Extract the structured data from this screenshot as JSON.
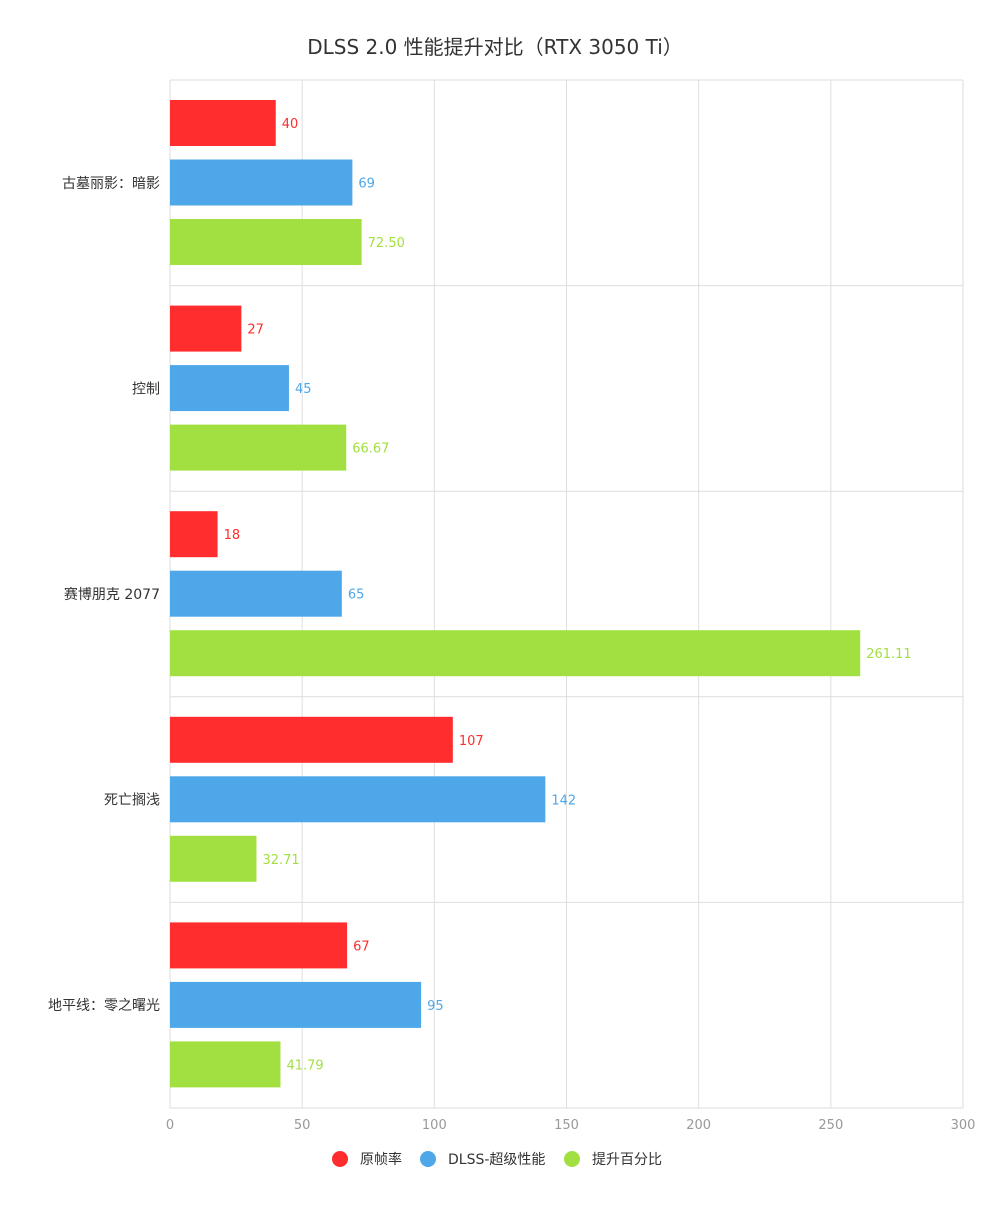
{
  "chart_data": {
    "type": "bar",
    "orientation": "horizontal",
    "title": "DLSS 2.0 性能提升对比（RTX 3050 Ti）",
    "xlabel": "",
    "ylabel": "",
    "categories": [
      "古墓丽影：暗影",
      "控制",
      "赛博朋克 2077",
      "死亡搁浅",
      "地平线：零之曙光"
    ],
    "xlim": [
      0,
      300
    ],
    "xticks": [
      0,
      50,
      100,
      150,
      200,
      250,
      300
    ],
    "grid": true,
    "legend_position": "bottom",
    "series": [
      {
        "name": "原帧率",
        "color": "#ff2d2d",
        "values": [
          40,
          27,
          18,
          107,
          67
        ],
        "labels": [
          "40",
          "27",
          "18",
          "107",
          "67"
        ]
      },
      {
        "name": "DLSS-超级性能",
        "color": "#4ea7e9",
        "values": [
          69,
          45,
          65,
          142,
          95
        ],
        "labels": [
          "69",
          "45",
          "65",
          "142",
          "95"
        ]
      },
      {
        "name": "提升百分比",
        "color": "#a2e042",
        "values": [
          72.5,
          66.67,
          261.11,
          32.71,
          41.79
        ],
        "labels": [
          "72.50",
          "66.67",
          "261.11",
          "32.71",
          "41.79"
        ]
      }
    ]
  }
}
